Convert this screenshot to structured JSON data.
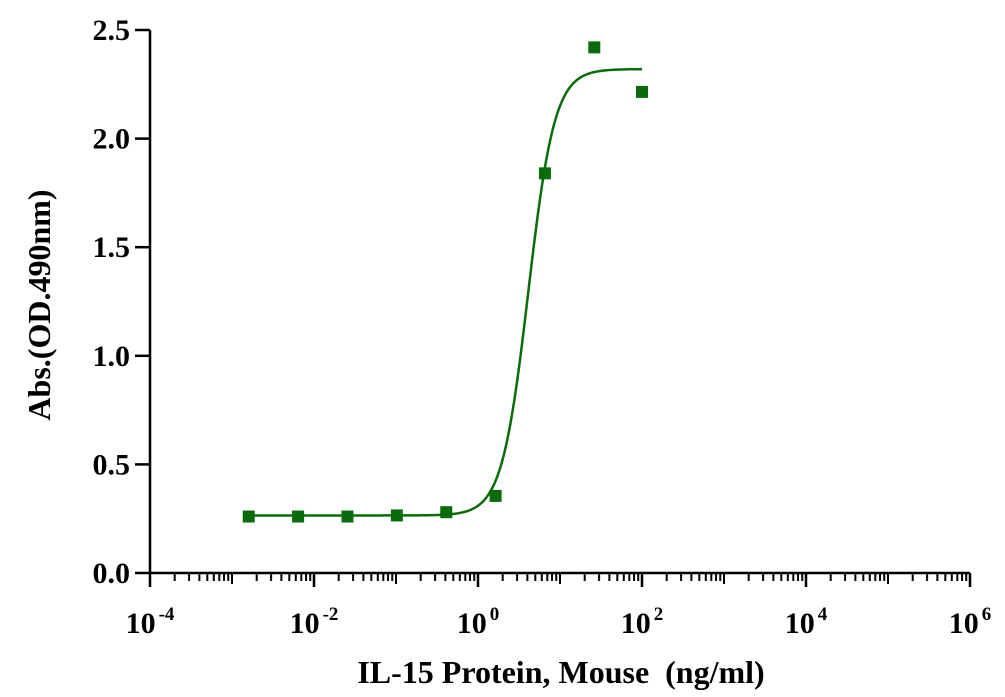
{
  "chart_data": {
    "type": "scatter",
    "title": "",
    "xlabel": "IL-15 Protein, Mouse  (ng/ml)",
    "ylabel": "Abs.(OD.490nm)",
    "x_scale": "log10",
    "xlim": [
      0.0001,
      1000000
    ],
    "ylim": [
      0,
      2.5
    ],
    "x_ticks": [
      {
        "base": "10",
        "exp": "-4",
        "value": 0.0001
      },
      {
        "base": "10",
        "exp": "-2",
        "value": 0.01
      },
      {
        "base": "10",
        "exp": "0",
        "value": 1
      },
      {
        "base": "10",
        "exp": "2",
        "value": 100
      },
      {
        "base": "10",
        "exp": "4",
        "value": 10000
      },
      {
        "base": "10",
        "exp": "6",
        "value": 1000000
      }
    ],
    "y_ticks": [
      "0.0",
      "0.5",
      "1.0",
      "1.5",
      "2.0",
      "2.5"
    ],
    "grid": false,
    "color": "#0a6b0a",
    "series": [
      {
        "marker": "square",
        "points": [
          {
            "x": 0.0016,
            "y": 0.26
          },
          {
            "x": 0.0064,
            "y": 0.26
          },
          {
            "x": 0.0256,
            "y": 0.26
          },
          {
            "x": 0.1024,
            "y": 0.265
          },
          {
            "x": 0.41,
            "y": 0.28
          },
          {
            "x": 1.64,
            "y": 0.355
          },
          {
            "x": 6.55,
            "y": 1.84
          },
          {
            "x": 26.2,
            "y": 2.42
          },
          {
            "x": 100,
            "y": 2.215
          }
        ],
        "fit": {
          "model": "4PL",
          "bottom": 0.265,
          "top": 2.32,
          "ec50": 4.1,
          "hill": 2.7,
          "x_range": [
            0.0016,
            100
          ]
        }
      }
    ]
  }
}
